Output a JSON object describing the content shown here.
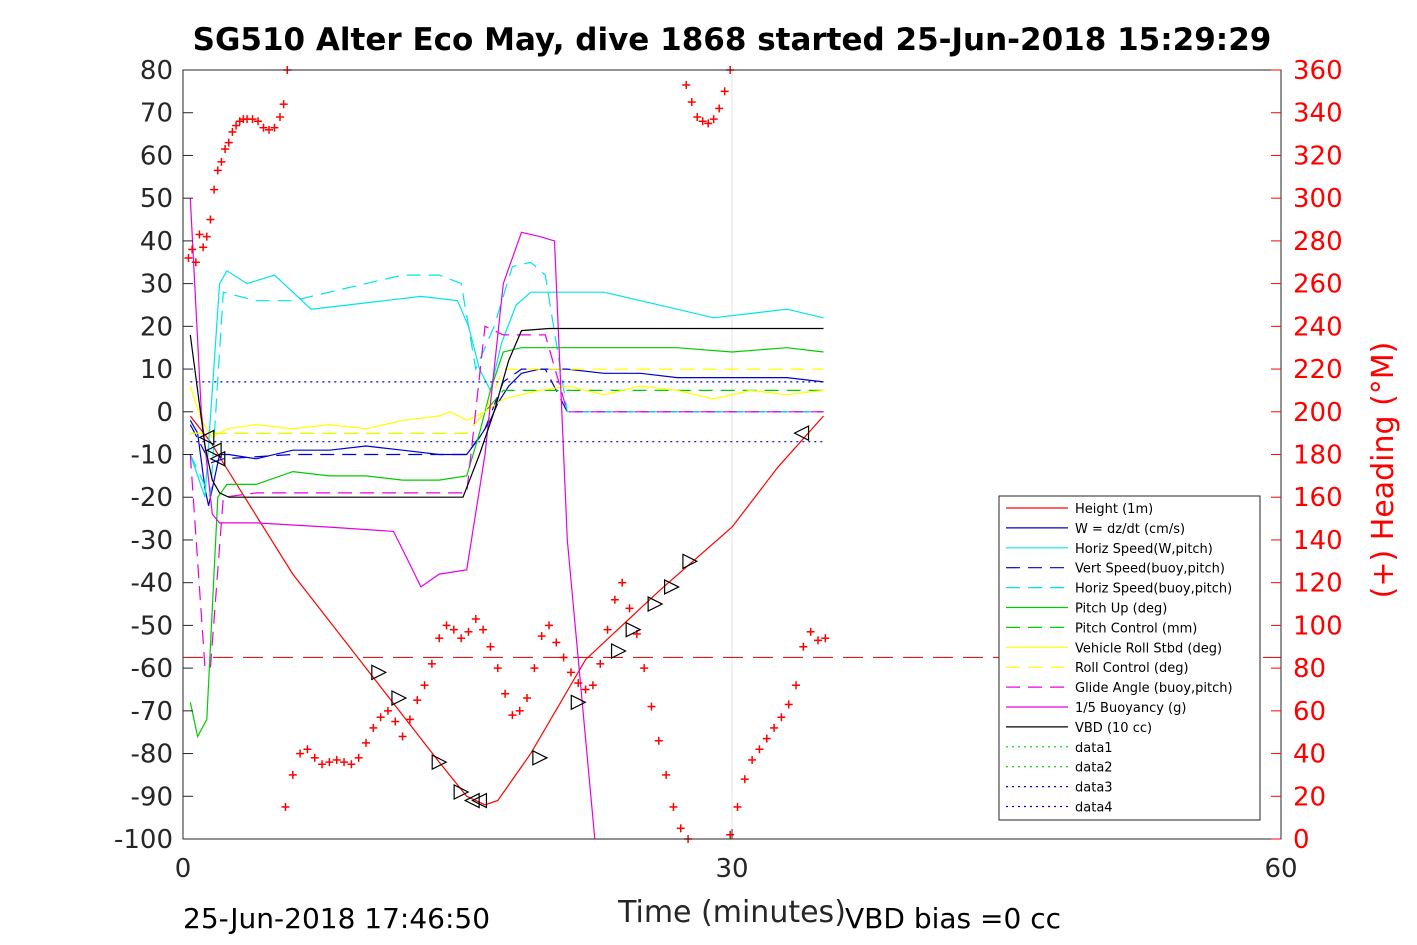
{
  "chart_data": {
    "type": "line",
    "title": "SG510 Alter Eco May, dive 1868 started 25-Jun-2018 15:29:29",
    "xlabel": "Time (minutes)",
    "ylabel_right": "(+) Heading (°M)",
    "xlim": [
      0,
      60
    ],
    "ylim": [
      -100,
      80
    ],
    "ylim_right": [
      0,
      360
    ],
    "x_ticks": [
      "0",
      "30",
      "60"
    ],
    "y_ticks": [
      "80",
      "70",
      "60",
      "50",
      "40",
      "30",
      "20",
      "10",
      "0",
      "-10",
      "-20",
      "-30",
      "-40",
      "-50",
      "-60",
      "-70",
      "-80",
      "-90",
      "-100"
    ],
    "y_ticks_right": [
      "360",
      "340",
      "320",
      "300",
      "280",
      "260",
      "240",
      "220",
      "200",
      "180",
      "160",
      "140",
      "120",
      "100",
      "80",
      "60",
      "40",
      "20",
      "0"
    ],
    "grid": "x-at-30",
    "legend_position": "bottom-right",
    "footer_left": "25-Jun-2018 17:46:50",
    "footer_right": "VBD bias =0 cc",
    "series": [
      {
        "name": "Height (1m)",
        "color": "#ff0000",
        "style": "solid",
        "x": [
          0.4,
          1.5,
          2.2,
          6,
          10,
          14,
          15.5,
          16.5,
          17.2,
          19,
          22,
          26,
          30,
          32.5,
          35
        ],
        "y": [
          -1,
          -7,
          -12,
          -38,
          -60,
          -82,
          -90,
          -92,
          -91,
          -80,
          -58,
          -42,
          -27,
          -13,
          -1
        ]
      },
      {
        "name": "W = dz/dt (cm/s)",
        "color": "#0000cc",
        "style": "solid",
        "x": [
          0.4,
          0.8,
          1.2,
          1.4,
          1.6,
          2.0,
          2.5,
          4,
          6,
          8,
          10,
          12,
          14,
          15.5,
          16.2,
          16.8,
          17.2,
          17.8,
          18.5,
          19.5,
          21,
          23,
          25,
          27,
          29,
          31,
          33,
          35
        ],
        "y": [
          -2,
          -5,
          -18,
          -22,
          -18,
          -10,
          -10,
          -11,
          -9,
          -9,
          -8,
          -9,
          -10,
          -10,
          -6,
          -2,
          2,
          6,
          9,
          10,
          10,
          9,
          9,
          8,
          8,
          8,
          8,
          7
        ]
      },
      {
        "name": "Horiz Speed(W,pitch)",
        "color": "#00e5e5",
        "style": "solid",
        "x": [
          0.4,
          1.2,
          1.6,
          2.0,
          2.4,
          3.5,
          5,
          7,
          9,
          11,
          13,
          15,
          15.6,
          16.2,
          16.8,
          17.4,
          18.2,
          19,
          21,
          23,
          25,
          27,
          29,
          31,
          33,
          35
        ],
        "y": [
          -10,
          -20,
          5,
          30,
          33,
          30,
          32,
          24,
          25,
          26,
          27,
          26,
          20,
          10,
          5,
          16,
          25,
          28,
          28,
          28,
          26,
          24,
          22,
          23,
          24,
          22
        ]
      },
      {
        "name": "Vert Speed(buoy,pitch)",
        "color": "#0000cc",
        "style": "dashed",
        "x": [
          0.4,
          1.5,
          2.2,
          6,
          10,
          14,
          15.5,
          16.5,
          17.5,
          18.5,
          19.8,
          21,
          24,
          28,
          32,
          35
        ],
        "y": [
          -3,
          -12,
          -11,
          -10,
          -10,
          -10,
          -10,
          -4,
          7,
          10,
          10,
          0,
          0,
          0,
          0,
          0
        ]
      },
      {
        "name": "Horiz Speed(buoy,pitch)",
        "color": "#00e5e5",
        "style": "dashed",
        "x": [
          0.4,
          1.5,
          2.2,
          4,
          6,
          10,
          12,
          14,
          15.2,
          16,
          17,
          18,
          19,
          19.8,
          21,
          24,
          28,
          32,
          35
        ],
        "y": [
          -10,
          -20,
          28,
          26,
          26,
          30,
          32,
          32,
          30,
          10,
          20,
          34,
          35,
          32,
          0,
          0,
          0,
          0,
          0
        ]
      },
      {
        "name": "Pitch Up (deg)",
        "color": "#00cc00",
        "style": "solid",
        "x": [
          0.4,
          0.8,
          1.3,
          1.9,
          2.4,
          4,
          6,
          8,
          10,
          12,
          14,
          15.5,
          16.2,
          16.8,
          17.5,
          18.5,
          21,
          24,
          27,
          30,
          33,
          35
        ],
        "y": [
          -68,
          -76,
          -72,
          -20,
          -17,
          -17,
          -14,
          -15,
          -15,
          -16,
          -16,
          -15,
          -5,
          5,
          14,
          15,
          15,
          15,
          15,
          14,
          15,
          14
        ]
      },
      {
        "name": "Pitch Control (mm)",
        "color": "#00cc00",
        "style": "dashed",
        "x": [
          0.4,
          1.5,
          15.5,
          16.5,
          17.5,
          35
        ],
        "y": [
          -5,
          -5,
          -5,
          0,
          5,
          5
        ]
      },
      {
        "name": "Vehicle Roll Stbd (deg)",
        "color": "#ffff00",
        "style": "solid",
        "x": [
          0.4,
          1.0,
          1.6,
          2.4,
          4,
          6,
          8,
          10,
          12,
          14,
          14.6,
          15.5,
          16.5,
          17.5,
          18.5,
          19.5,
          21,
          23,
          25,
          27,
          29,
          31,
          33,
          35
        ],
        "y": [
          6,
          -2,
          -6,
          -4,
          -3,
          -4,
          -3,
          -4,
          -2,
          -1,
          0,
          -2,
          0,
          3,
          4,
          5,
          6,
          4,
          6,
          5,
          3,
          5,
          4,
          5
        ]
      },
      {
        "name": "Roll Control (deg)",
        "color": "#ffff00",
        "style": "dashed",
        "x": [
          0.4,
          15.5,
          16.5,
          17.5,
          35
        ],
        "y": [
          -5,
          -5,
          0,
          10,
          10
        ]
      },
      {
        "name": "Glide Angle (buoy,pitch)",
        "color": "#e600e6",
        "style": "dashed",
        "x": [
          0.4,
          1.2,
          1.5,
          2.2,
          4,
          8,
          12,
          15.5,
          16.5,
          17.5,
          19.8,
          21,
          24,
          28,
          32,
          35
        ],
        "y": [
          -10,
          -60,
          -60,
          -20,
          -19,
          -19,
          -19,
          -19,
          20,
          18,
          18,
          0,
          0,
          0,
          0,
          0
        ]
      },
      {
        "name": "1/5 Buoyancy (g)",
        "color": "#e600e6",
        "style": "solid",
        "x": [
          0.4,
          0.7,
          1.0,
          1.6,
          2.0,
          4,
          8,
          11.5,
          12.2,
          13,
          14,
          15.5,
          16.5,
          17.5,
          18.5,
          19.5,
          20.3,
          21,
          22.5
        ],
        "y": [
          50,
          25,
          0,
          -24,
          -26,
          -26,
          -27,
          -28,
          -34,
          -41,
          -38,
          -37,
          -10,
          30,
          42,
          41,
          40,
          -30,
          -100
        ]
      },
      {
        "name": "VBD (10 cc)",
        "color": "#000000",
        "style": "solid",
        "x": [
          0.4,
          0.8,
          1.2,
          1.6,
          2.0,
          2.5,
          5,
          10,
          15.3,
          16.2,
          17,
          17.8,
          18.5,
          20,
          25,
          30,
          35
        ],
        "y": [
          18,
          5,
          -8,
          -16,
          -19,
          -20,
          -20,
          -20,
          -20,
          -10,
          0,
          12,
          19,
          19.5,
          19.5,
          19.5,
          19.5
        ]
      },
      {
        "name": "data1",
        "color": "#00cc00",
        "style": "dotted",
        "x": [],
        "y": []
      },
      {
        "name": "data2",
        "color": "#00cc00",
        "style": "dotted",
        "x": [],
        "y": []
      },
      {
        "name": "data3",
        "color": "#0000cc",
        "style": "dotted",
        "x": [
          0.4,
          35
        ],
        "y": [
          7,
          7
        ]
      },
      {
        "name": "data4",
        "color": "#0000cc",
        "style": "dotted",
        "x": [
          0.4,
          35
        ],
        "y": [
          -7,
          -7
        ]
      }
    ],
    "reference_line": {
      "color": "#cc0000",
      "style": "dashed",
      "y": -57.5
    },
    "heading_points": {
      "color": "#ff0000",
      "marker": "+",
      "axis": "right",
      "segments": [
        {
          "x": [
            0.3,
            0.5,
            0.7,
            0.9,
            1.1,
            1.3,
            1.5,
            1.7,
            1.9,
            2.1,
            2.3,
            2.5,
            2.7,
            2.9,
            3.1,
            3.3,
            3.5,
            3.8,
            4.1,
            4.4,
            4.7,
            5.0,
            5.3,
            5.5,
            5.7
          ],
          "y": [
            272,
            276,
            270,
            283,
            277,
            282,
            290,
            304,
            313,
            317,
            323,
            326,
            331,
            334,
            336,
            337,
            337,
            337,
            336,
            333,
            332,
            333,
            338,
            344,
            360
          ]
        },
        {
          "x": [
            5.6,
            6.0,
            6.4,
            6.8,
            7.2,
            7.6,
            8.0,
            8.4,
            8.8,
            9.2,
            9.6,
            10.0,
            10.4,
            10.8,
            11.2,
            11.6,
            12.0,
            12.4,
            12.8,
            13.2,
            13.6,
            14.0,
            14.4,
            14.8,
            15.2,
            15.6,
            16.0,
            16.4,
            16.8,
            17.2,
            17.6,
            18.0,
            18.4,
            18.8,
            19.2,
            19.6,
            20.0,
            20.4,
            20.8,
            21.2,
            21.6,
            22.0,
            22.4,
            22.8,
            23.2,
            23.6,
            24.0,
            24.4,
            24.8,
            25.2,
            25.6,
            26.0,
            26.4,
            26.8,
            27.2,
            27.6
          ],
          "y": [
            15,
            30,
            40,
            42,
            38,
            35,
            36,
            37,
            36,
            35,
            38,
            45,
            52,
            57,
            60,
            55,
            48,
            56,
            65,
            72,
            82,
            94,
            100,
            98,
            94,
            97,
            103,
            98,
            90,
            80,
            68,
            58,
            60,
            66,
            80,
            95,
            100,
            92,
            85,
            78,
            73,
            70,
            72,
            82,
            98,
            112,
            120,
            108,
            96,
            80,
            62,
            46,
            30,
            15,
            5,
            0
          ]
        },
        {
          "x": [
            27.5,
            27.8,
            28.1,
            28.4,
            28.7,
            29.0,
            29.3,
            29.6,
            29.9
          ],
          "y": [
            353,
            345,
            338,
            336,
            335,
            337,
            342,
            350,
            360
          ]
        },
        {
          "x": [
            29.9,
            30.3,
            30.7,
            31.1,
            31.5,
            31.9,
            32.3,
            32.7,
            33.1,
            33.5,
            33.9,
            34.3,
            34.7,
            35.1
          ],
          "y": [
            2,
            15,
            28,
            37,
            42,
            47,
            52,
            57,
            63,
            72,
            90,
            97,
            93,
            94
          ]
        }
      ]
    },
    "triangle_markers": {
      "color": "#000000",
      "left": {
        "x": [
          1.3,
          1.7,
          1.9,
          15.8,
          16.2,
          33.8
        ],
        "y": [
          -6,
          -9,
          -11,
          -91,
          -91,
          -5
        ]
      },
      "right": {
        "x": [
          10.7,
          11.8,
          14.0,
          15.2,
          19.5,
          21.6,
          23.8,
          24.6,
          25.8,
          26.7,
          27.7
        ],
        "y": [
          -61,
          -67,
          -82,
          -89,
          -81,
          -68,
          -56,
          -51,
          -45,
          -41,
          -35
        ]
      }
    }
  }
}
